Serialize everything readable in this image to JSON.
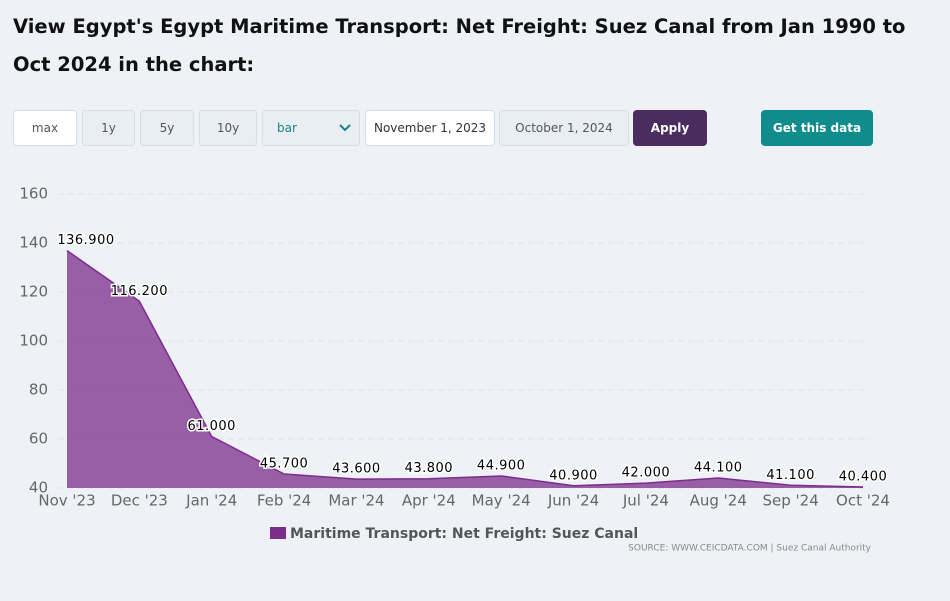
{
  "header": {
    "title": "View Egypt's Egypt Maritime Transport: Net Freight: Suez Canal from Jan 1990 to Oct 2024 in the chart:"
  },
  "controls": {
    "ranges": [
      "max",
      "1y",
      "5y",
      "10y"
    ],
    "chart_type": "bar",
    "start_date": "November 1, 2023",
    "end_date": "October 1, 2024",
    "apply": "Apply",
    "get_data": "Get this data"
  },
  "chart_data": {
    "type": "area",
    "categories": [
      "Nov '23",
      "Dec '23",
      "Jan '24",
      "Feb '24",
      "Mar '24",
      "Apr '24",
      "May '24",
      "Jun '24",
      "Jul '24",
      "Aug '24",
      "Sep '24",
      "Oct '24"
    ],
    "series": [
      {
        "name": "Maritime Transport: Net Freight: Suez Canal",
        "color": "#7b2d8b",
        "values": [
          136.9,
          116.2,
          61,
          45.7,
          43.6,
          43.8,
          44.9,
          40.9,
          42,
          44.1,
          41.1,
          40.4
        ],
        "value_labels": [
          "136.900",
          "116.200",
          "61.000",
          "45.700",
          "43.600",
          "43.800",
          "44.900",
          "40.900",
          "42.000",
          "44.100",
          "41.100",
          "40.400"
        ]
      }
    ],
    "ylim": [
      40,
      160
    ],
    "yticks": [
      40,
      60,
      80,
      100,
      120,
      140,
      160
    ],
    "grid": true,
    "source": "SOURCE: WWW.CEICDATA.COM | Suez Canal Authority"
  }
}
